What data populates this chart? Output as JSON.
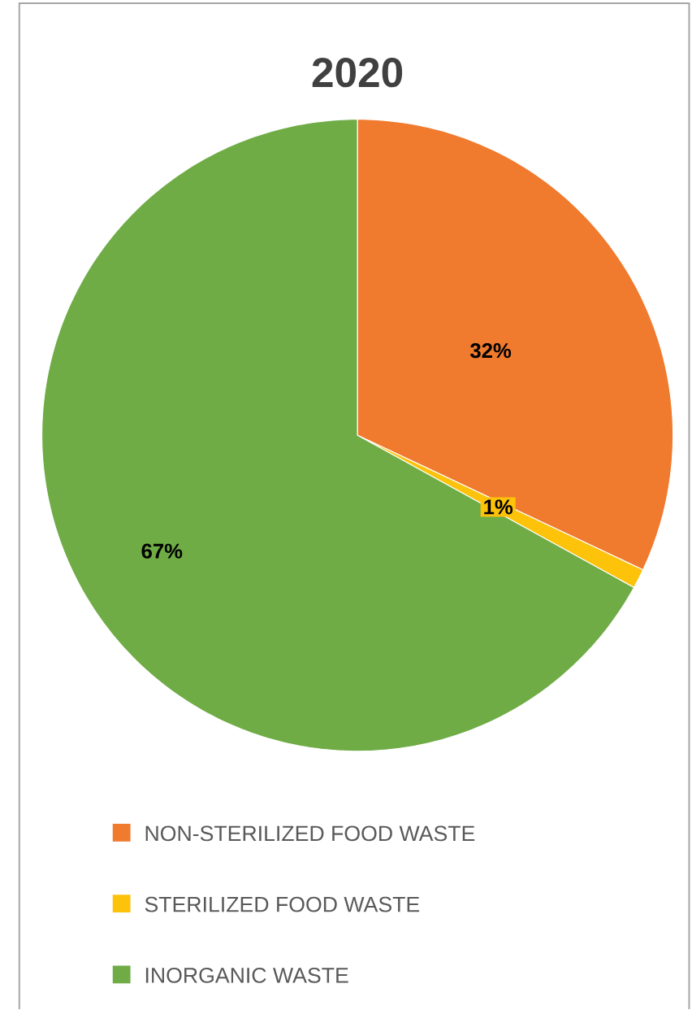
{
  "chart_data": {
    "type": "pie",
    "title": "2020",
    "categories": [
      "NON-STERILIZED FOOD WASTE",
      "STERILIZED FOOD WASTE",
      "INORGANIC WASTE"
    ],
    "values": [
      32,
      1,
      67
    ],
    "colors": [
      "#f07a2e",
      "#fdc20a",
      "#6fac46"
    ],
    "value_labels": [
      "32%",
      "1%",
      "67%"
    ],
    "legend": "bottom"
  }
}
